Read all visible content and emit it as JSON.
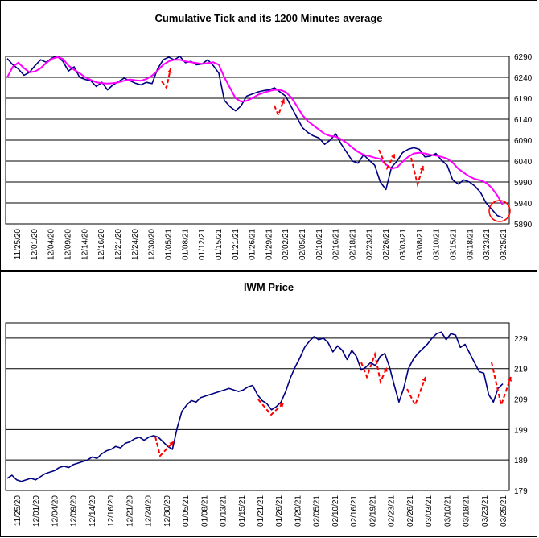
{
  "chart_data": [
    {
      "type": "line",
      "title": "Cumulative Tick and its 1200 Minutes average",
      "xlabel": "",
      "ylabel": "",
      "ylim": [
        5890,
        6290
      ],
      "yticks": [
        5890,
        5940,
        5990,
        6040,
        6090,
        6140,
        6190,
        6240,
        6290
      ],
      "grid": "horizontal",
      "x_tick_labels": [
        "11/25/20",
        "12/01/20",
        "12/04/20",
        "12/09/20",
        "12/14/20",
        "12/16/20",
        "12/21/20",
        "12/24/20",
        "12/30/20",
        "01/05/21",
        "01/08/21",
        "01/12/21",
        "01/15/21",
        "01/21/21",
        "01/26/21",
        "01/29/21",
        "02/02/21",
        "02/05/21",
        "02/10/21",
        "02/16/21",
        "02/18/21",
        "02/23/21",
        "02/26/21",
        "03/03/21",
        "03/08/21",
        "03/10/21",
        "03/15/21",
        "03/18/21",
        "03/23/21",
        "03/25/21"
      ],
      "series": [
        {
          "color": "#000080",
          "values": [
            6285,
            6270,
            6260,
            6245,
            6252,
            6268,
            6282,
            6276,
            6286,
            6290,
            6278,
            6255,
            6265,
            6240,
            6235,
            6232,
            6218,
            6228,
            6210,
            6222,
            6230,
            6238,
            6232,
            6226,
            6222,
            6228,
            6225,
            6260,
            6282,
            6288,
            6282,
            6290,
            6275,
            6278,
            6270,
            6272,
            6282,
            6268,
            6250,
            6185,
            6170,
            6160,
            6172,
            6195,
            6200,
            6205,
            6208,
            6210,
            6215,
            6205,
            6195,
            6170,
            6145,
            6120,
            6108,
            6100,
            6095,
            6080,
            6090,
            6105,
            6080,
            6060,
            6040,
            6035,
            6055,
            6042,
            6030,
            5990,
            5972,
            6025,
            6040,
            6060,
            6068,
            6072,
            6068,
            6050,
            6052,
            6058,
            6042,
            6030,
            5995,
            5985,
            5995,
            5990,
            5980,
            5965,
            5940,
            5925,
            5910,
            5905
          ]
        },
        {
          "color": "#FF00FF",
          "values": [
            6240,
            6265,
            6275,
            6262,
            6252,
            6254,
            6262,
            6274,
            6284,
            6288,
            6284,
            6268,
            6258,
            6250,
            6240,
            6234,
            6228,
            6226,
            6225,
            6226,
            6228,
            6232,
            6235,
            6233,
            6232,
            6236,
            6244,
            6256,
            6270,
            6278,
            6282,
            6282,
            6278,
            6276,
            6274,
            6272,
            6274,
            6276,
            6270,
            6240,
            6215,
            6190,
            6182,
            6184,
            6190,
            6198,
            6203,
            6207,
            6210,
            6210,
            6205,
            6192,
            6172,
            6150,
            6135,
            6125,
            6115,
            6105,
            6100,
            6098,
            6092,
            6083,
            6072,
            6062,
            6055,
            6052,
            6048,
            6045,
            6032,
            6022,
            6025,
            6038,
            6050,
            6058,
            6060,
            6058,
            6055,
            6053,
            6050,
            6046,
            6036,
            6022,
            6012,
            6003,
            5997,
            5994,
            5988,
            5976,
            5958,
            5935
          ]
        }
      ],
      "annotations": [
        {
          "type": "dashed-red-arrow",
          "near": "01/05/21"
        },
        {
          "type": "dashed-red-arrow",
          "near": "01/29/21"
        },
        {
          "type": "dashed-red-arrow",
          "near": "02/23/21"
        },
        {
          "type": "dashed-red-arrow",
          "near": "03/08/21"
        },
        {
          "type": "red-circle",
          "near": "03/25/21"
        }
      ]
    },
    {
      "type": "line",
      "title": "IWM Price",
      "xlabel": "",
      "ylabel": "",
      "ylim": [
        179,
        234
      ],
      "yticks": [
        179,
        189,
        199,
        209,
        219,
        229
      ],
      "grid": "horizontal",
      "x_tick_labels": [
        "11/25/20",
        "12/01/20",
        "12/04/20",
        "12/09/20",
        "12/14/20",
        "12/16/20",
        "12/21/20",
        "12/24/20",
        "12/30/20",
        "01/05/21",
        "01/08/21",
        "01/13/21",
        "01/15/21",
        "01/21/21",
        "01/26/21",
        "01/29/21",
        "02/05/21",
        "02/10/21",
        "02/16/21",
        "02/19/21",
        "02/23/21",
        "02/26/21",
        "03/03/21",
        "03/10/21",
        "03/18/21",
        "03/23/21",
        "03/25/21"
      ],
      "series": [
        {
          "color": "#000080",
          "values": [
            183,
            184,
            182.5,
            182,
            182.5,
            183,
            182.5,
            183.5,
            184.5,
            185,
            185.5,
            186.5,
            187,
            186.5,
            187.5,
            188,
            188.5,
            189,
            190,
            189.5,
            191,
            192,
            192.5,
            193.5,
            193,
            194.5,
            195,
            196,
            196.5,
            195.5,
            196.5,
            197,
            196.5,
            195,
            193.5,
            192.5,
            199.5,
            205,
            207,
            208.5,
            208,
            209.5,
            210,
            210.5,
            211,
            211.5,
            212,
            212.5,
            212,
            211.5,
            212,
            213,
            213.5,
            210.5,
            208.5,
            207.5,
            205.5,
            206.5,
            208,
            211.5,
            216,
            219.5,
            222.5,
            226,
            228,
            229.5,
            228.5,
            229,
            227.5,
            224.5,
            226.5,
            225,
            222,
            225,
            223,
            218.5,
            219.5,
            221,
            220,
            223,
            224,
            219.5,
            213.5,
            208,
            212.5,
            219,
            222,
            224,
            225.5,
            227,
            229,
            230.5,
            231,
            228.5,
            230.5,
            230,
            226,
            227,
            224,
            221,
            218,
            217.5,
            210.5,
            208,
            212.5,
            214
          ]
        }
      ],
      "annotations": [
        {
          "type": "dashed-red-arrow",
          "near": "12/30/20"
        },
        {
          "type": "dashed-red-arrow",
          "near": "01/29/21"
        },
        {
          "type": "dashed-red-arrow",
          "near": "02/23/21"
        },
        {
          "type": "dashed-red-arrow",
          "near": "03/03/21"
        },
        {
          "type": "dashed-red-arrow",
          "near": "03/25/21"
        }
      ]
    }
  ]
}
